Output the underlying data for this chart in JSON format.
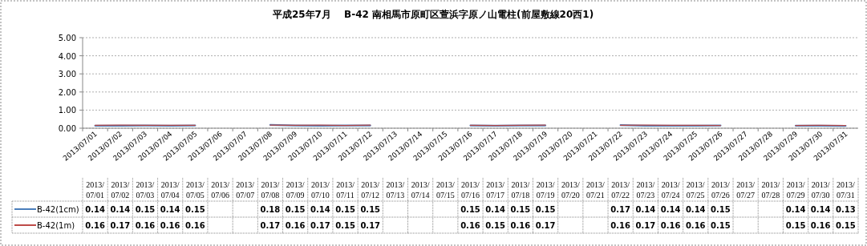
{
  "chart_data": {
    "type": "line",
    "title": "平成25年7月　 B-42 南相馬市原町区萱浜字原ノ山電柱(前屋敷線20西1)",
    "categories": [
      "2013/07/01",
      "2013/07/02",
      "2013/07/03",
      "2013/07/04",
      "2013/07/05",
      "2013/07/06",
      "2013/07/07",
      "2013/07/08",
      "2013/07/09",
      "2013/07/10",
      "2013/07/11",
      "2013/07/12",
      "2013/07/13",
      "2013/07/14",
      "2013/07/15",
      "2013/07/16",
      "2013/07/17",
      "2013/07/18",
      "2013/07/19",
      "2013/07/20",
      "2013/07/21",
      "2013/07/22",
      "2013/07/23",
      "2013/07/24",
      "2013/07/25",
      "2013/07/26",
      "2013/07/27",
      "2013/07/28",
      "2013/07/29",
      "2013/07/30",
      "2013/07/31"
    ],
    "series": [
      {
        "name": "B-42(1cm)",
        "color": "#4a7ebb",
        "values": [
          0.14,
          0.14,
          0.15,
          0.14,
          0.15,
          null,
          null,
          0.18,
          0.15,
          0.14,
          0.15,
          0.15,
          null,
          null,
          null,
          0.15,
          0.14,
          0.15,
          0.15,
          null,
          null,
          0.17,
          0.14,
          0.14,
          0.14,
          0.15,
          null,
          null,
          0.14,
          0.14,
          0.13
        ]
      },
      {
        "name": "B-42(1m)",
        "color": "#be4b48",
        "values": [
          0.16,
          0.17,
          0.16,
          0.16,
          0.16,
          null,
          null,
          0.17,
          0.16,
          0.17,
          0.15,
          0.17,
          null,
          null,
          null,
          0.16,
          0.15,
          0.16,
          0.17,
          null,
          null,
          0.16,
          0.17,
          0.16,
          0.16,
          0.15,
          null,
          null,
          0.15,
          0.16,
          0.15
        ]
      }
    ],
    "ylim": [
      0,
      5
    ],
    "yticks": [
      {
        "value": 0,
        "label": "0.00"
      },
      {
        "value": 1,
        "label": "1.00"
      },
      {
        "value": 2,
        "label": "2.00"
      },
      {
        "value": 3,
        "label": "3.00"
      },
      {
        "value": 4,
        "label": "4.00"
      },
      {
        "value": 5,
        "label": "5.00"
      }
    ],
    "grid": "y",
    "marker": "none",
    "line_style": "solid",
    "data_labels": true,
    "legend": "bottom left"
  }
}
